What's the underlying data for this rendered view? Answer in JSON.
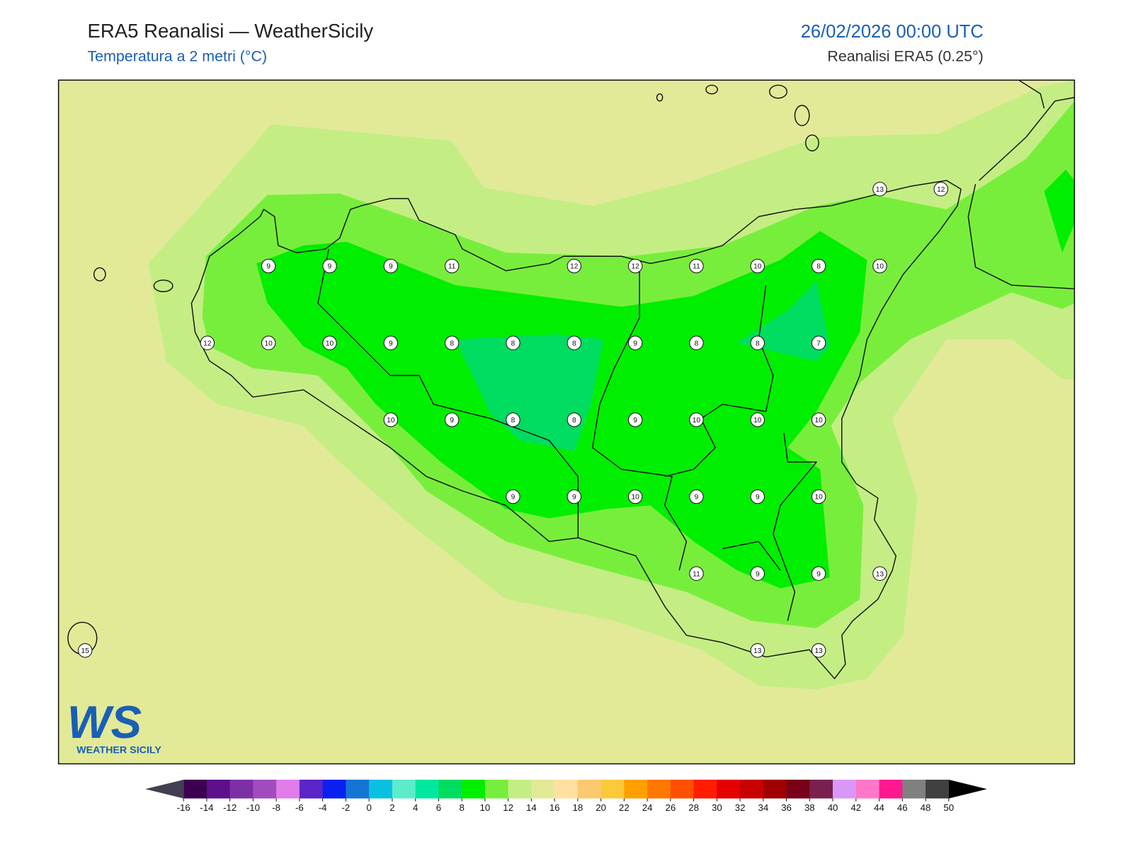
{
  "header": {
    "title": "ERA5 Reanalisi — WeatherSicily",
    "subtitle": "Temperatura a 2 metri (°C)",
    "datetime": "26/02/2026 00:00 UTC",
    "source": "Reanalisi ERA5 (0.25°)"
  },
  "stations": {
    "values": [
      13,
      12,
      9,
      9,
      9,
      11,
      12,
      12,
      11,
      10,
      8,
      10,
      12,
      10,
      10,
      9,
      8,
      8,
      8,
      9,
      8,
      8,
      7,
      10,
      9,
      8,
      8,
      9,
      10,
      10,
      10,
      9,
      9,
      10,
      9,
      9,
      10,
      11,
      9,
      9,
      13,
      15,
      13,
      13
    ]
  },
  "colorbar": {
    "ticks": [
      -16,
      -14,
      -12,
      -10,
      -8,
      -6,
      -4,
      -2,
      0,
      2,
      4,
      6,
      8,
      10,
      12,
      14,
      16,
      18,
      20,
      22,
      24,
      26,
      28,
      30,
      32,
      34,
      36,
      38,
      40,
      42,
      44,
      46,
      48,
      50
    ],
    "colors": [
      "#3d0050",
      "#5e0f8a",
      "#7d2fa5",
      "#a14bbf",
      "#e07de8",
      "#5b25c8",
      "#0a20f0",
      "#1475d4",
      "#0ac0e0",
      "#5ceccc",
      "#00e8a0",
      "#00dc60",
      "#00ee00",
      "#78ee3c",
      "#c4ee84",
      "#e2ea98",
      "#ffe0a0",
      "#fcc870",
      "#fcc83c",
      "#ffa000",
      "#ff7800",
      "#ff5000",
      "#ff1c00",
      "#e60000",
      "#c80000",
      "#a00000",
      "#780018",
      "#7a2050",
      "#d898f8",
      "#ff78c8",
      "#ff1890",
      "#808080",
      "#404040"
    ],
    "under_color": "#404050",
    "over_color": "#000000"
  },
  "logo": {
    "text": "WS",
    "caption": "WEATHER SICILY"
  }
}
